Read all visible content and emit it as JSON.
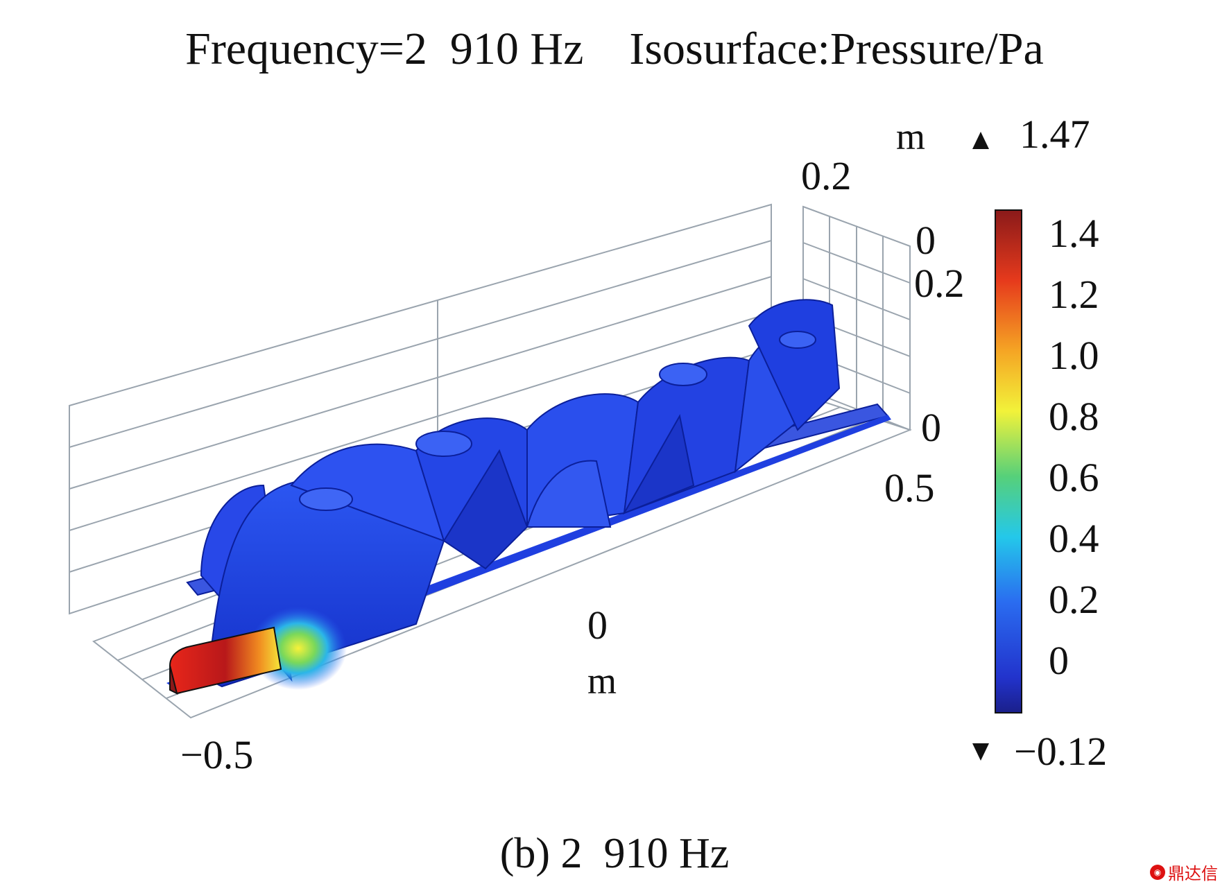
{
  "title": "Frequency=2  910 Hz    Isosurface:Pressure/Pa",
  "caption": "(b) 2  910 Hz",
  "chart_data": {
    "type": "isosurface-3d",
    "quantity": "Pressure/Pa",
    "frequency_hz": 2910,
    "axes": {
      "x": {
        "unit": "m",
        "ticks": [
          "−0.5",
          "0",
          "0.5"
        ]
      },
      "y": {
        "ticks": [
          "0",
          "0.2"
        ]
      },
      "z": {
        "unit": "m",
        "ticks": [
          "0.2",
          "0"
        ]
      }
    },
    "colorbar": {
      "max": 1.47,
      "min": -0.12,
      "max_label": "1.47",
      "min_label": "−0.12",
      "ticks": [
        "1.4",
        "1.2",
        "1.0",
        "0.8",
        "0.6",
        "0.4",
        "0.2",
        "0"
      ],
      "tick_values": [
        1.4,
        1.2,
        1.0,
        0.8,
        0.6,
        0.4,
        0.2,
        0
      ],
      "colormap": [
        "#1a1f8a",
        "#2233cc",
        "#2a6cf0",
        "#24c8ea",
        "#56d07a",
        "#f2f23a",
        "#f5a524",
        "#e63a1c",
        "#8a1a1a"
      ]
    },
    "source_value": 1.47
  },
  "colors": {
    "surface": "#1f3fe0",
    "surface_dark": "#0b1f9a",
    "source": "#e8261a",
    "grid": "#9aa4ae"
  },
  "watermark": "鼎达信"
}
